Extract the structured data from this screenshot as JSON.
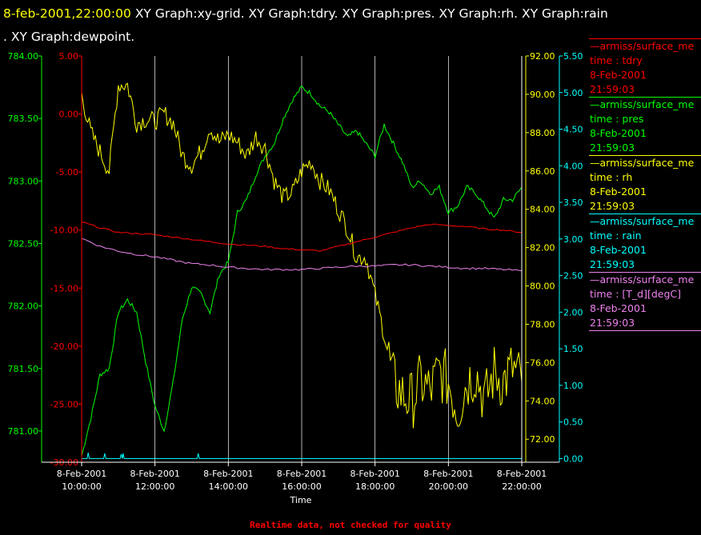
{
  "header": {
    "date": "8-feb-2001,22:00:00",
    "line1_rest": "XY Graph:xy-grid.  XY Graph:tdry.  XY Graph:pres.  XY Graph:rh.  XY Graph:rain",
    "line2": ".  XY Graph:dewpoint."
  },
  "legend": [
    {
      "name": "—armiss/surface_me",
      "label": "time : tdry",
      "date": "8-Feb-2001",
      "time": "21:59:03",
      "color": "#ff0000"
    },
    {
      "name": "—armiss/surface_me",
      "label": "time : pres",
      "date": "8-Feb-2001",
      "time": "21:59:03",
      "color": "#00ff00"
    },
    {
      "name": "—armiss/surface_me",
      "label": "time : rh",
      "date": "8-Feb-2001",
      "time": "21:59:03",
      "color": "#ffff00"
    },
    {
      "name": "—armiss/surface_me",
      "label": "time : rain",
      "date": "8-Feb-2001",
      "time": "21:59:03",
      "color": "#00ffff"
    },
    {
      "name": "—armiss/surface_me",
      "label": "time : [T_d][degC]",
      "date": "8-Feb-2001",
      "time": "21:59:03",
      "color": "#ee82ee"
    }
  ],
  "footer": "Realtime data, not checked for quality",
  "chart_data": {
    "type": "line",
    "xlabel": "Time",
    "x_ticks": [
      {
        "date": "8-Feb-2001",
        "time": "10:00:00",
        "hour": 10
      },
      {
        "date": "8-Feb-2001",
        "time": "12:00:00",
        "hour": 12
      },
      {
        "date": "8-Feb-2001",
        "time": "14:00:00",
        "hour": 14
      },
      {
        "date": "8-Feb-2001",
        "time": "16:00:00",
        "hour": 16
      },
      {
        "date": "8-Feb-2001",
        "time": "18:00:00",
        "hour": 18
      },
      {
        "date": "8-Feb-2001",
        "time": "20:00:00",
        "hour": 20
      },
      {
        "date": "8-Feb-2001",
        "time": "22:00:00",
        "hour": 22
      }
    ],
    "xlim": [
      10,
      22
    ],
    "grid": "vertical",
    "axes": [
      {
        "id": "pres",
        "color": "#00ff00",
        "ylim": [
          780.75,
          784.0
        ],
        "ticks": [
          "781.00",
          "781.50",
          "782.00",
          "782.50",
          "783.00",
          "783.50",
          "784.00"
        ]
      },
      {
        "id": "temp",
        "color": "#ff0000",
        "ylim": [
          -30.0,
          5.0
        ],
        "ticks": [
          "-30.00",
          "-25.00",
          "-20.00",
          "-15.00",
          "-10.00",
          "-5.00",
          "0.00",
          "5.00"
        ]
      },
      {
        "id": "rh",
        "color": "#ffff00",
        "ylim": [
          70.8,
          92.0
        ],
        "ticks": [
          "72.00",
          "74.00",
          "76.00",
          "78.00",
          "80.00",
          "82.00",
          "84.00",
          "86.00",
          "88.00",
          "90.00",
          "92.00"
        ]
      },
      {
        "id": "rain",
        "color": "#00ffff",
        "ylim": [
          -0.05,
          5.5
        ],
        "ticks": [
          "0.00",
          "0.50",
          "1.00",
          "1.50",
          "2.00",
          "2.50",
          "3.00",
          "3.50",
          "4.00",
          "4.50",
          "5.00",
          "5.50"
        ]
      }
    ],
    "series": [
      {
        "axis": "pres",
        "color": "#00ff00",
        "x": [
          10.0,
          10.25,
          10.5,
          10.75,
          11.0,
          11.25,
          11.5,
          11.75,
          12.0,
          12.25,
          12.5,
          12.75,
          13.0,
          13.25,
          13.5,
          13.75,
          14.0,
          14.25,
          14.5,
          14.75,
          15.0,
          15.25,
          15.5,
          15.75,
          16.0,
          16.25,
          16.5,
          16.75,
          17.0,
          17.25,
          17.5,
          17.75,
          18.0,
          18.25,
          18.5,
          18.75,
          19.0,
          19.25,
          19.5,
          19.75,
          20.0,
          20.25,
          20.5,
          20.75,
          21.0,
          21.25,
          21.5,
          21.75,
          22.0
        ],
        "y": [
          780.8,
          781.1,
          781.45,
          781.5,
          781.95,
          782.05,
          781.95,
          781.55,
          781.2,
          781.0,
          781.4,
          781.9,
          782.15,
          782.1,
          781.95,
          782.25,
          782.35,
          782.75,
          782.85,
          783.05,
          783.2,
          783.3,
          783.5,
          783.65,
          783.75,
          783.7,
          783.6,
          783.55,
          783.45,
          783.35,
          783.4,
          783.3,
          783.2,
          783.45,
          783.3,
          783.15,
          782.95,
          783.0,
          782.9,
          782.95,
          782.75,
          782.8,
          782.95,
          782.9,
          782.8,
          782.7,
          782.85,
          782.85,
          782.95
        ]
      },
      {
        "axis": "rh",
        "color": "#ffff00",
        "x": [
          10.0,
          10.25,
          10.5,
          10.75,
          11.0,
          11.25,
          11.5,
          11.75,
          12.0,
          12.25,
          12.5,
          12.75,
          13.0,
          13.25,
          13.5,
          13.75,
          14.0,
          14.25,
          14.5,
          14.75,
          15.0,
          15.25,
          15.5,
          15.75,
          16.0,
          16.25,
          16.5,
          16.75,
          17.0,
          17.25,
          17.5,
          17.75,
          18.0,
          18.25,
          18.5,
          18.75,
          19.0,
          19.25,
          19.5,
          19.75,
          20.0,
          20.25,
          20.5,
          20.75,
          21.0,
          21.25,
          21.5,
          21.75,
          22.0
        ],
        "y": [
          90.0,
          88.0,
          87.0,
          86.0,
          90.5,
          90.5,
          88.5,
          88.7,
          88.6,
          89.0,
          88.5,
          86.8,
          86.3,
          87.0,
          88.3,
          87.5,
          87.9,
          87.5,
          86.8,
          87.8,
          87.2,
          85.5,
          84.6,
          84.9,
          86.0,
          86.5,
          85.5,
          85.0,
          84.0,
          83.0,
          81.5,
          81.5,
          79.5,
          77.5,
          75.0,
          74.3,
          74.0,
          75.0,
          74.5,
          75.5,
          75.0,
          73.5,
          75.0,
          75.5,
          74.0,
          75.5,
          75.0,
          75.7,
          75.0
        ]
      },
      {
        "axis": "temp",
        "color": "#ff0000",
        "x": [
          10.0,
          10.5,
          11.0,
          11.5,
          12.0,
          12.5,
          13.0,
          13.5,
          14.0,
          14.5,
          15.0,
          15.5,
          16.0,
          16.5,
          17.0,
          17.5,
          18.0,
          18.5,
          19.0,
          19.5,
          20.0,
          20.5,
          21.0,
          21.5,
          22.0
        ],
        "y": [
          -9.3,
          -9.8,
          -10.2,
          -10.3,
          -10.4,
          -10.6,
          -10.8,
          -11.0,
          -11.2,
          -11.3,
          -11.4,
          -11.6,
          -11.7,
          -11.8,
          -11.4,
          -11.0,
          -10.6,
          -10.2,
          -9.8,
          -9.5,
          -9.6,
          -9.7,
          -9.9,
          -10.0,
          -10.2
        ]
      },
      {
        "axis": "temp",
        "color": "#ee82ee",
        "x": [
          10.0,
          10.5,
          11.0,
          11.5,
          12.0,
          12.5,
          13.0,
          13.5,
          14.0,
          14.5,
          15.0,
          15.5,
          16.0,
          16.5,
          17.0,
          17.5,
          18.0,
          18.5,
          19.0,
          19.5,
          20.0,
          20.5,
          21.0,
          21.5,
          22.0
        ],
        "y": [
          -10.7,
          -11.4,
          -11.8,
          -12.1,
          -12.3,
          -12.6,
          -12.9,
          -13.0,
          -13.2,
          -13.3,
          -13.4,
          -13.4,
          -13.4,
          -13.3,
          -13.2,
          -13.1,
          -13.1,
          -13.0,
          -13.0,
          -13.1,
          -13.2,
          -13.3,
          -13.3,
          -13.4,
          -13.5
        ]
      },
      {
        "axis": "rain",
        "color": "#00ffff",
        "x": [
          10.0,
          10.15,
          10.18,
          10.21,
          10.6,
          10.63,
          10.66,
          11.05,
          11.08,
          11.11,
          11.13,
          11.16,
          11.19,
          13.15,
          13.18,
          13.21,
          22.0
        ],
        "y": [
          0.0,
          0.0,
          0.08,
          0.0,
          0.0,
          0.07,
          0.0,
          0.0,
          0.06,
          0.0,
          0.07,
          0.0,
          0.0,
          0.0,
          0.07,
          0.0,
          0.0
        ]
      }
    ]
  }
}
